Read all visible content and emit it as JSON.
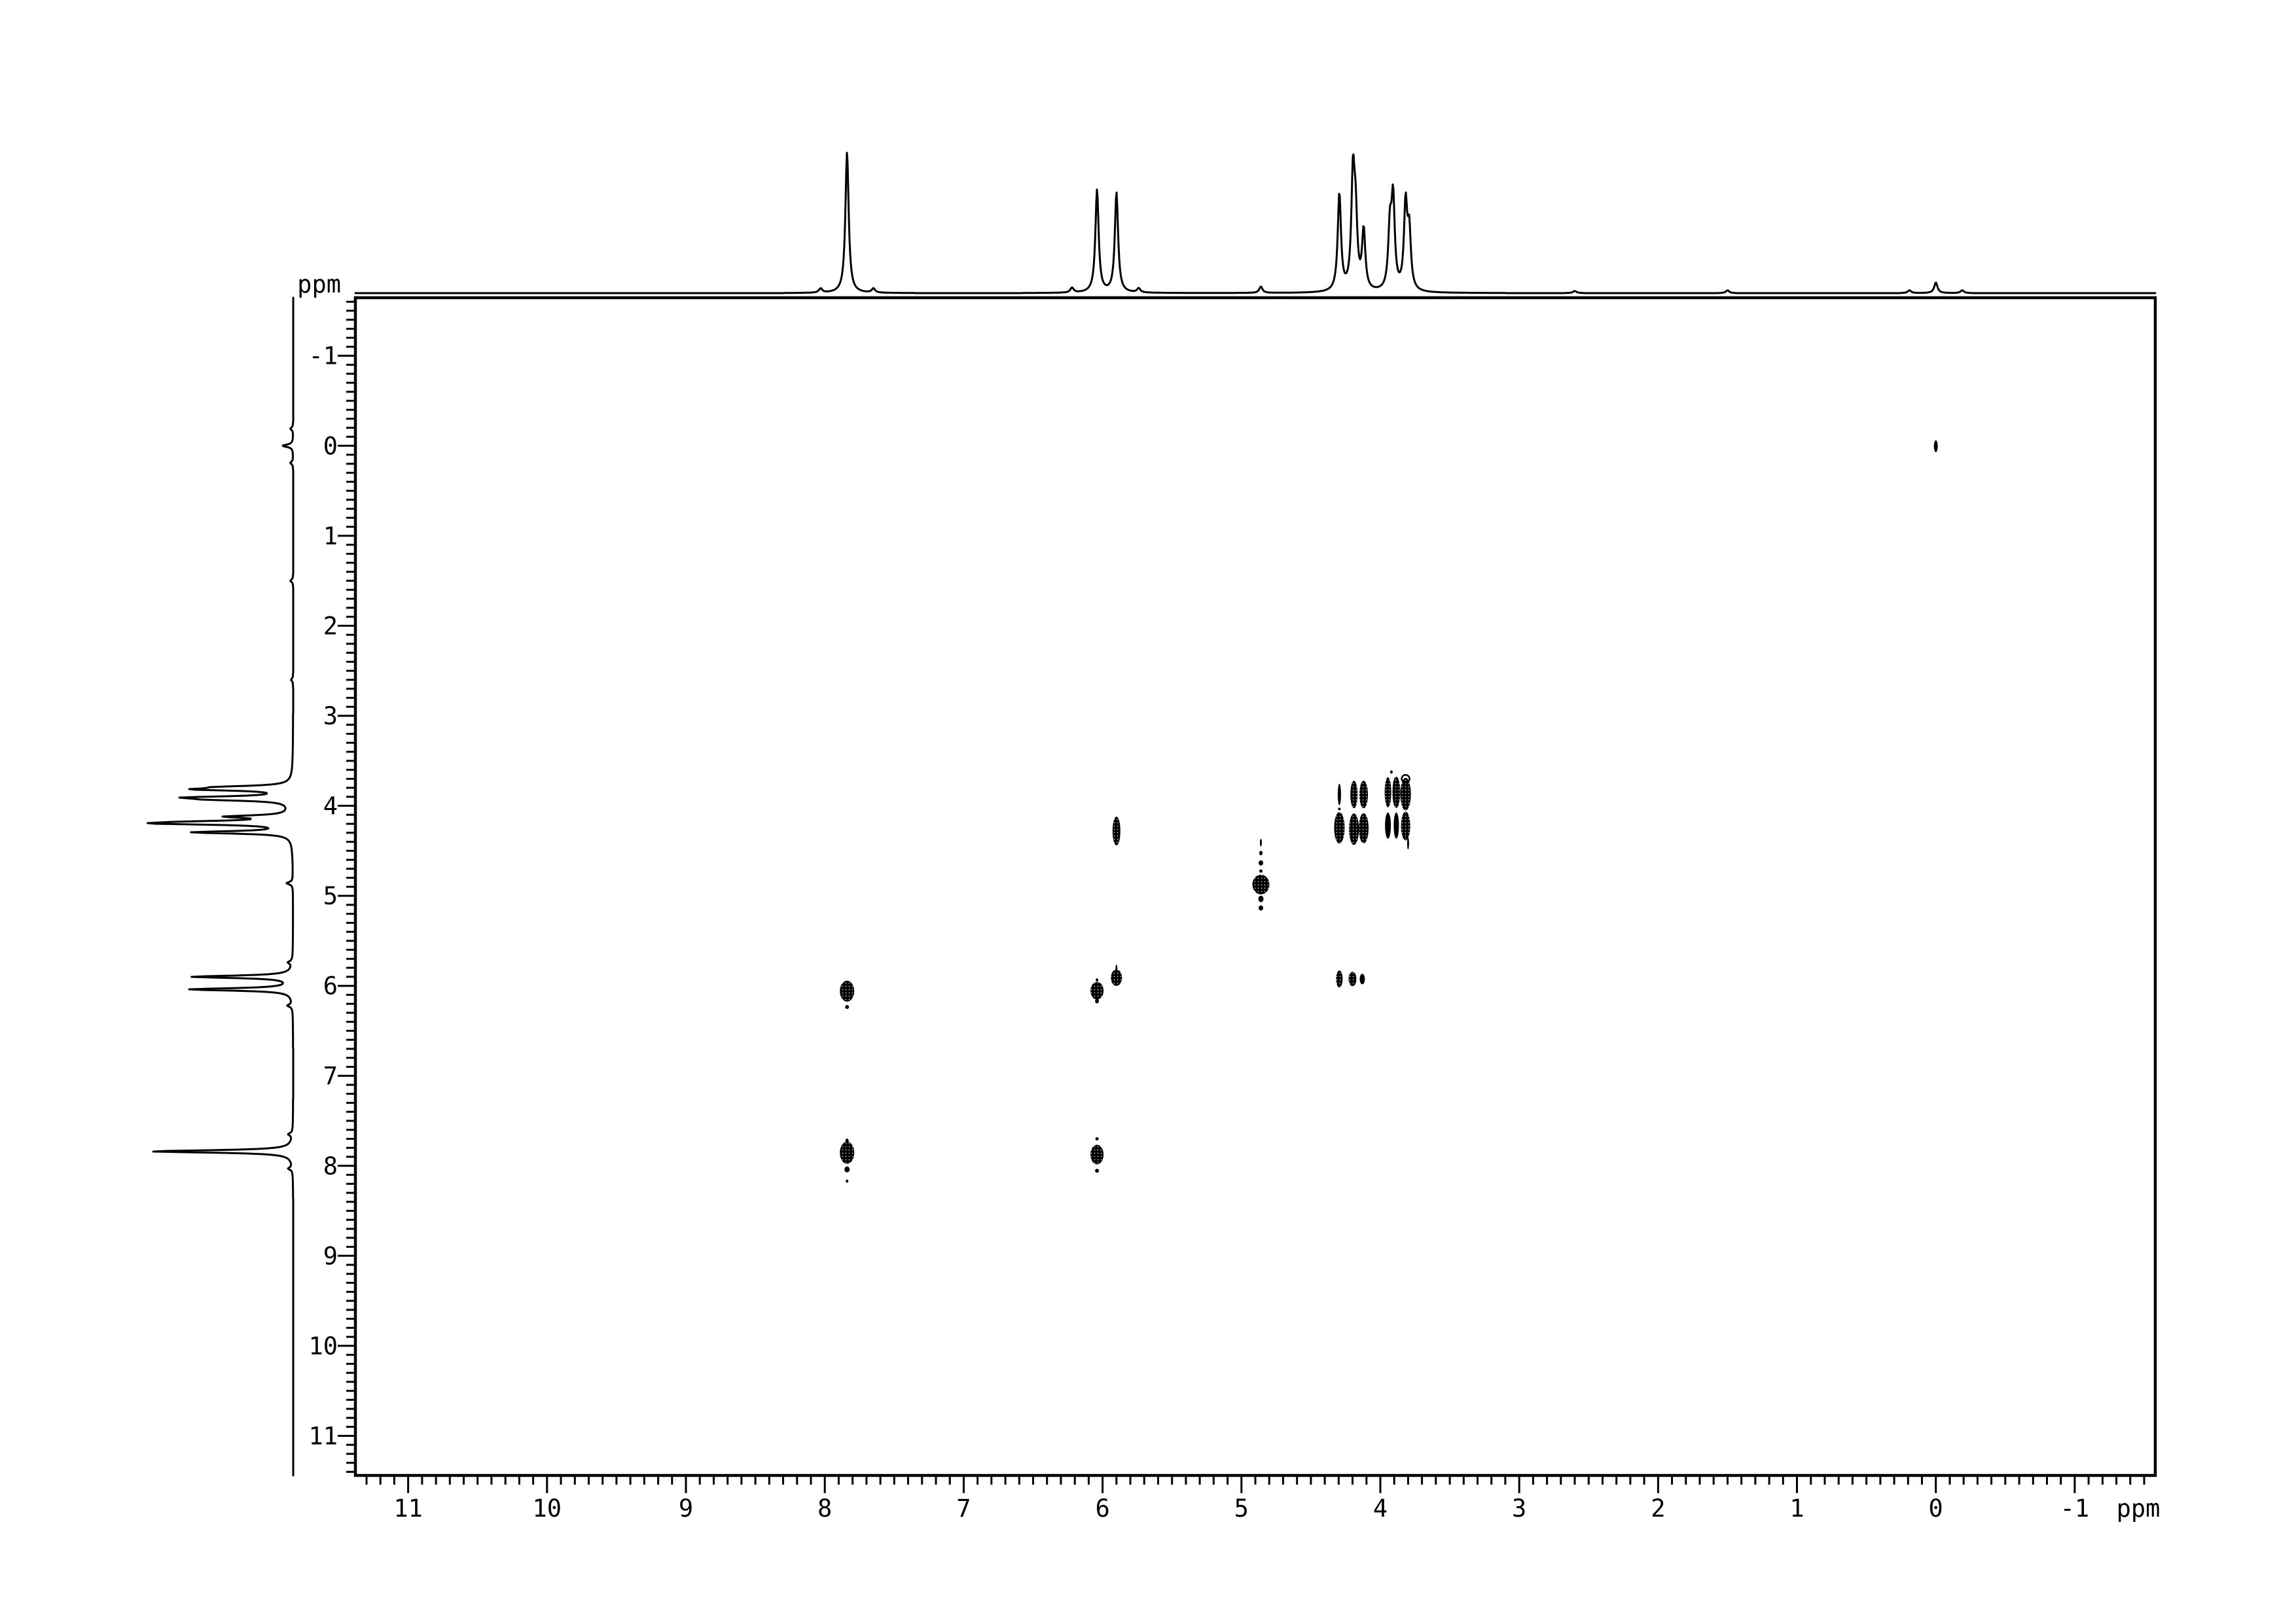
{
  "chart_data": {
    "type": "heatmap",
    "subtype": "2D NMR COSY contour spectrum with 1H 1D projection traces on top and left",
    "grid": "off",
    "axes": {
      "x": {
        "unit_label": "ppm",
        "direction": "reversed",
        "range_ppm": [
          11.38,
          -1.58
        ],
        "major_ticks": [
          11,
          10,
          9,
          8,
          7,
          6,
          5,
          4,
          3,
          2,
          1,
          0,
          -1
        ],
        "minor_tick_step_ppm": 0.1
      },
      "y": {
        "unit_label": "ppm",
        "direction": "increasing-downward",
        "range_ppm": [
          -1.645,
          11.44
        ],
        "major_ticks": [
          -1,
          0,
          1,
          2,
          3,
          4,
          5,
          6,
          7,
          8,
          9,
          10,
          11
        ],
        "minor_tick_step_ppm": 0.1
      }
    },
    "proton_1d_projection_peaks": [
      {
        "ppm": 8.03,
        "rel_intensity": 0.03
      },
      {
        "ppm": 7.84,
        "rel_intensity": 1.0
      },
      {
        "ppm": 7.65,
        "rel_intensity": 0.03
      },
      {
        "ppm": 6.22,
        "rel_intensity": 0.035
      },
      {
        "ppm": 6.04,
        "rel_intensity": 0.73
      },
      {
        "ppm": 5.9,
        "rel_intensity": 0.71
      },
      {
        "ppm": 5.74,
        "rel_intensity": 0.03
      },
      {
        "ppm": 4.86,
        "rel_intensity": 0.045
      },
      {
        "ppm": 4.295,
        "rel_intensity": 0.69
      },
      {
        "ppm": 4.197,
        "rel_intensity": 0.79
      },
      {
        "ppm": 4.178,
        "rel_intensity": 0.47
      },
      {
        "ppm": 4.12,
        "rel_intensity": 0.42
      },
      {
        "ppm": 3.931,
        "rel_intensity": 0.42
      },
      {
        "ppm": 3.908,
        "rel_intensity": 0.63
      },
      {
        "ppm": 3.818,
        "rel_intensity": 0.6
      },
      {
        "ppm": 3.792,
        "rel_intensity": 0.4
      },
      {
        "ppm": 2.6,
        "rel_intensity": 0.015
      },
      {
        "ppm": 1.5,
        "rel_intensity": 0.02
      },
      {
        "ppm": 0.19,
        "rel_intensity": 0.02
      },
      {
        "ppm": 0.0,
        "rel_intensity": 0.075
      },
      {
        "ppm": -0.19,
        "rel_intensity": 0.02
      }
    ],
    "diagonal_peaks_ppm": [
      7.84,
      6.04,
      5.9,
      4.86,
      4.3,
      4.2,
      4.12,
      3.92,
      3.82,
      0.0
    ],
    "cross_peaks_ppm": [
      {
        "f2": 7.84,
        "f1": 6.06
      },
      {
        "f2": 6.04,
        "f1": 7.875
      },
      {
        "f2": 5.9,
        "f1": 4.28
      },
      {
        "f2": 4.295,
        "f1": 5.925
      },
      {
        "f2": 4.2,
        "f1": 5.925
      },
      {
        "f2": 4.13,
        "f1": 5.925
      },
      {
        "f2": 4.295,
        "f1": 3.875
      },
      {
        "f2": 4.19,
        "f1": 3.875
      },
      {
        "f2": 4.12,
        "f1": 3.875
      },
      {
        "f2": 3.945,
        "f1": 4.22
      },
      {
        "f2": 3.885,
        "f1": 4.22
      },
      {
        "f2": 3.818,
        "f1": 4.225
      }
    ],
    "contour_blobs": [
      {
        "f2": 7.84,
        "f1": 7.855,
        "w": 22,
        "h": 34
      },
      {
        "f2": 7.84,
        "f1": 7.72,
        "w": 5,
        "h": 6
      },
      {
        "f2": 7.84,
        "f1": 8.04,
        "w": 8,
        "h": 9
      },
      {
        "f2": 7.84,
        "f1": 8.17,
        "w": 4,
        "h": 5
      },
      {
        "f2": 6.04,
        "f1": 6.055,
        "w": 20,
        "h": 27
      },
      {
        "f2": 6.04,
        "f1": 6.17,
        "w": 6,
        "h": 7
      },
      {
        "f2": 6.04,
        "f1": 5.935,
        "w": 4,
        "h": 5
      },
      {
        "f2": 5.9,
        "f1": 5.91,
        "w": 17,
        "h": 25
      },
      {
        "f2": 5.9,
        "f1": 5.815,
        "w": 3,
        "h": 14
      },
      {
        "f2": 4.86,
        "f1": 4.875,
        "w": 26,
        "h": 30
      },
      {
        "f2": 4.86,
        "f1": 4.41,
        "w": 3,
        "h": 12
      },
      {
        "f2": 4.86,
        "f1": 4.525,
        "w": 5,
        "h": 7
      },
      {
        "f2": 4.86,
        "f1": 4.635,
        "w": 7,
        "h": 8
      },
      {
        "f2": 4.86,
        "f1": 4.725,
        "w": 5,
        "h": 5
      },
      {
        "f2": 4.86,
        "f1": 5.035,
        "w": 8,
        "h": 10
      },
      {
        "f2": 4.86,
        "f1": 5.135,
        "w": 7,
        "h": 8
      },
      {
        "f2": 0.0,
        "f1": 0.005,
        "w": 6,
        "h": 18
      },
      {
        "f2": 4.295,
        "f1": 3.875,
        "w": 5,
        "h": 33
      },
      {
        "f2": 4.295,
        "f1": 4.035,
        "w": 4,
        "h": 4
      },
      {
        "f2": 4.19,
        "f1": 3.875,
        "w": 11,
        "h": 42
      },
      {
        "f2": 4.12,
        "f1": 3.875,
        "w": 13,
        "h": 42
      },
      {
        "f2": 3.945,
        "f1": 3.85,
        "w": 10,
        "h": 46
      },
      {
        "f2": 3.885,
        "f1": 3.85,
        "w": 12,
        "h": 48
      },
      {
        "f2": 3.818,
        "f1": 3.87,
        "w": 16,
        "h": 50
      },
      {
        "f2": 3.818,
        "f1": 3.7,
        "w": 12,
        "h": 12,
        "style": "ring"
      },
      {
        "f2": 3.92,
        "f1": 3.625,
        "w": 4,
        "h": 5
      },
      {
        "f2": 4.295,
        "f1": 4.245,
        "w": 16,
        "h": 48
      },
      {
        "f2": 4.19,
        "f1": 4.26,
        "w": 15,
        "h": 48
      },
      {
        "f2": 4.12,
        "f1": 4.25,
        "w": 15,
        "h": 46
      },
      {
        "f2": 3.945,
        "f1": 4.22,
        "w": 9,
        "h": 40
      },
      {
        "f2": 3.885,
        "f1": 4.22,
        "w": 8,
        "h": 40
      },
      {
        "f2": 3.818,
        "f1": 4.225,
        "w": 14,
        "h": 44
      },
      {
        "f2": 3.8,
        "f1": 4.42,
        "w": 3,
        "h": 18
      },
      {
        "f2": 7.84,
        "f1": 6.06,
        "w": 22,
        "h": 32
      },
      {
        "f2": 7.84,
        "f1": 6.235,
        "w": 6,
        "h": 6
      },
      {
        "f2": 6.04,
        "f1": 7.875,
        "w": 20,
        "h": 30
      },
      {
        "f2": 6.04,
        "f1": 7.7,
        "w": 5,
        "h": 5
      },
      {
        "f2": 6.04,
        "f1": 8.055,
        "w": 6,
        "h": 6
      },
      {
        "f2": 5.9,
        "f1": 4.28,
        "w": 12,
        "h": 44
      },
      {
        "f2": 4.295,
        "f1": 5.925,
        "w": 10,
        "h": 26
      },
      {
        "f2": 4.2,
        "f1": 5.925,
        "w": 12,
        "h": 22
      },
      {
        "f2": 4.13,
        "f1": 5.925,
        "w": 8,
        "h": 16
      }
    ],
    "colors": {
      "foreground": "#000000",
      "background": "#ffffff"
    }
  }
}
